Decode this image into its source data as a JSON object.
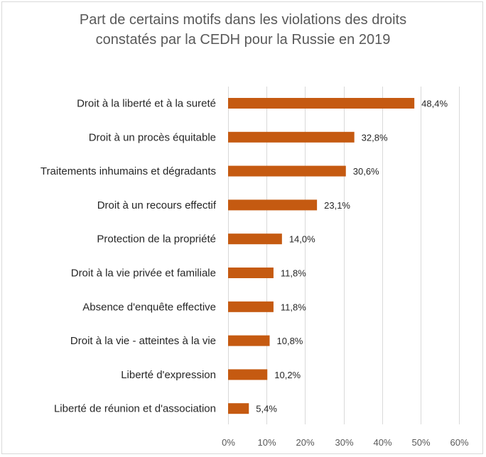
{
  "chart_data": {
    "type": "bar",
    "orientation": "horizontal",
    "title_lines": [
      "Part de certains motifs dans les violations des droits",
      "constatés par la CEDH pour la Russie en 2019"
    ],
    "categories": [
      "Droit à la liberté et à la sureté",
      "Droit à un procès équitable",
      "Traitements inhumains et dégradants",
      "Droit à un recours effectif",
      "Protection de la propriété",
      "Droit à la vie privée et familiale",
      "Absence d'enquête effective",
      "Droit à la vie - atteintes à la vie",
      "Liberté d'expression",
      "Liberté de réunion et d'association"
    ],
    "values": [
      48.4,
      32.8,
      30.6,
      23.1,
      14.0,
      11.8,
      11.8,
      10.8,
      10.2,
      5.4
    ],
    "value_labels": [
      "48,4%",
      "32,8%",
      "30,6%",
      "23,1%",
      "14,0%",
      "11,8%",
      "11,8%",
      "10,8%",
      "10,2%",
      "5,4%"
    ],
    "x_ticks": [
      0,
      10,
      20,
      30,
      40,
      50,
      60
    ],
    "x_tick_labels": [
      "0%",
      "10%",
      "20%",
      "30%",
      "40%",
      "50%",
      "60%"
    ],
    "xlim": [
      0,
      60
    ],
    "bar_color": "#c55a11",
    "grid": true,
    "legend": "none"
  }
}
